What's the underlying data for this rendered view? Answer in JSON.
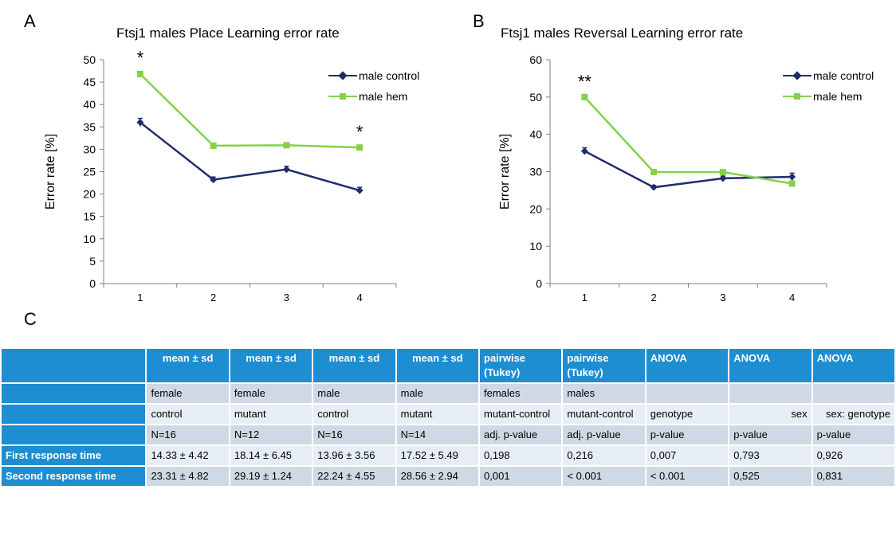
{
  "panels": {
    "a": "A",
    "b": "B",
    "c": "C"
  },
  "chart_data": [
    {
      "type": "line",
      "title": "Ftsj1 males Place Learning error rate",
      "ylabel": "Error rate [%]",
      "xlabel": "",
      "categories": [
        "1",
        "2",
        "3",
        "4"
      ],
      "ylim": [
        0,
        50
      ],
      "yticks": [
        0,
        5,
        10,
        15,
        20,
        25,
        30,
        35,
        40,
        45,
        50
      ],
      "series": [
        {
          "name": "male control",
          "values": [
            36,
            23.2,
            25.5,
            20.8
          ],
          "errors": [
            0.9,
            0.6,
            0.7,
            0.7
          ],
          "color": "#1f2d6b",
          "marker": "diamond"
        },
        {
          "name": "male hem",
          "values": [
            46.8,
            30.8,
            30.9,
            30.4
          ],
          "errors": [
            0.5,
            0.4,
            0.4,
            0.4
          ],
          "color": "#84d14a",
          "marker": "square"
        }
      ],
      "annotations": [
        {
          "x": "1",
          "text": "*"
        },
        {
          "x": "4",
          "text": "*"
        }
      ],
      "legend": "top-right",
      "grid": false
    },
    {
      "type": "line",
      "title": "Ftsj1 males Reversal Learning error rate",
      "ylabel": "Error rate [%]",
      "xlabel": "",
      "categories": [
        "1",
        "2",
        "3",
        "4"
      ],
      "ylim": [
        0,
        60
      ],
      "yticks": [
        0,
        10,
        20,
        30,
        40,
        50,
        60
      ],
      "series": [
        {
          "name": "male control",
          "values": [
            35.5,
            25.8,
            28.2,
            28.6
          ],
          "errors": [
            0.9,
            0.5,
            0.6,
            1.0
          ],
          "color": "#1f2d6b",
          "marker": "diamond"
        },
        {
          "name": "male hem",
          "values": [
            50,
            29.9,
            29.9,
            26.8
          ],
          "errors": [
            0.4,
            0.4,
            0.4,
            0.5
          ],
          "color": "#84d14a",
          "marker": "square"
        }
      ],
      "annotations": [
        {
          "x": "1",
          "text": "**"
        }
      ],
      "legend": "top-right",
      "grid": false
    }
  ],
  "table": {
    "header": [
      "",
      "mean ± sd",
      "mean ± sd",
      "mean ± sd",
      "mean ± sd",
      "pairwise (Tukey)",
      "pairwise (Tukey)",
      "ANOVA",
      "ANOVA",
      "ANOVA"
    ],
    "rows": [
      [
        "",
        "female",
        "female",
        "male",
        "male",
        "females",
        "males",
        "",
        "",
        ""
      ],
      [
        "",
        "control",
        "mutant",
        "control",
        "mutant",
        "mutant-control",
        "mutant-control",
        "genotype",
        "sex",
        "sex: genotype"
      ],
      [
        "",
        "N=16",
        "N=12",
        "N=16",
        "N=14",
        "adj. p-value",
        "adj. p-value",
        "p-value",
        "p-value",
        "p-value"
      ],
      [
        "First response time",
        "14.33 ± 4.42",
        "18.14 ± 6.45",
        "13.96 ± 3.56",
        "17.52 ± 5.49",
        "0,198",
        "0,216",
        "0,007",
        "0,793",
        "0,926"
      ],
      [
        "Second response time",
        "23.31 ± 4.82",
        "29.19 ± 1.24",
        "22.24 ± 4.55",
        "28.56 ± 2.94",
        "0,001",
        "< 0.001",
        "< 0.001",
        "0,525",
        "0,831"
      ]
    ]
  }
}
